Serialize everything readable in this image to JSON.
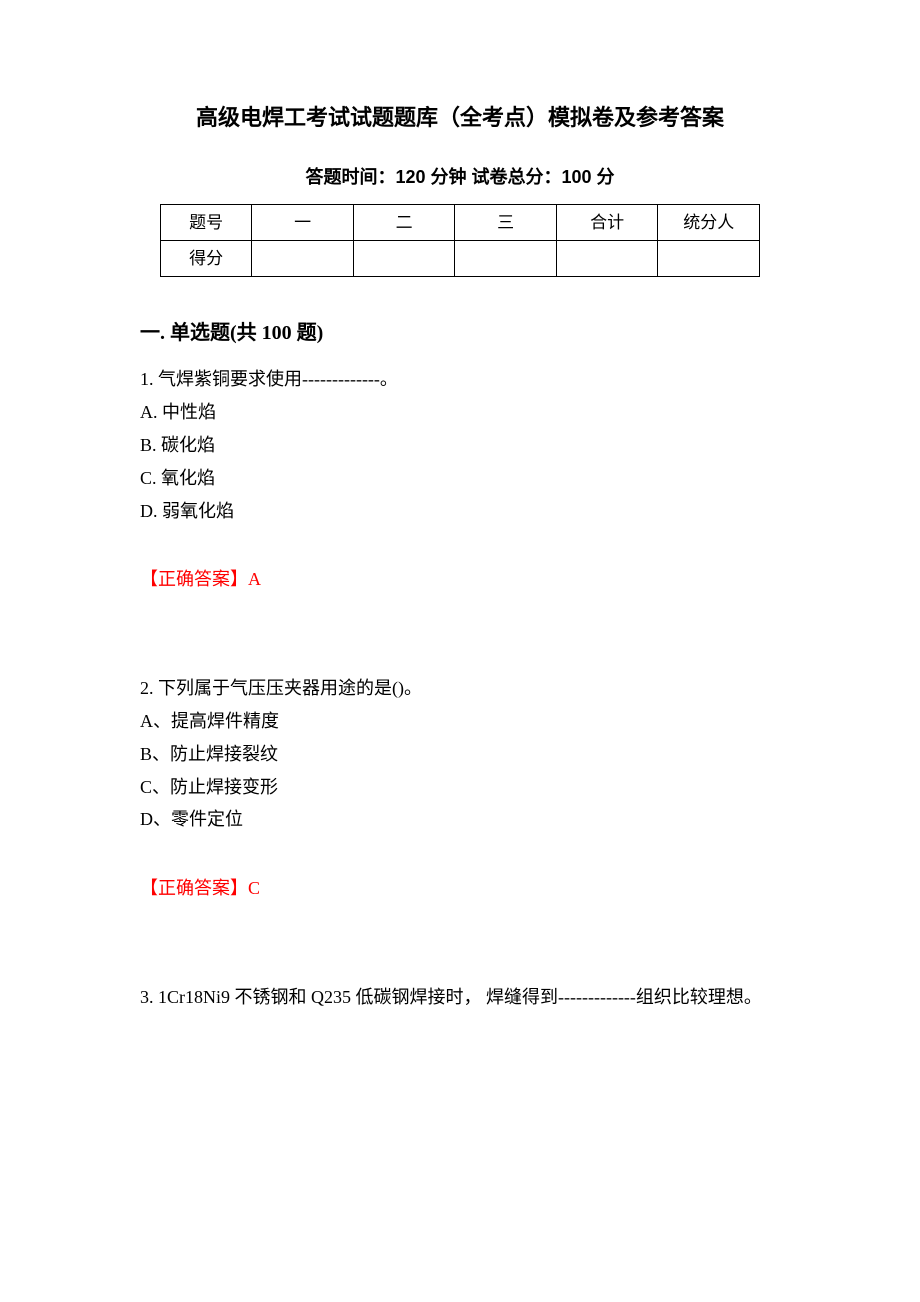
{
  "title": "高级电焊工考试试题题库（全考点）模拟卷及参考答案",
  "subtitle": "答题时间：120 分钟    试卷总分：100 分",
  "scoreTable": {
    "rowHeaders": [
      "题号",
      "得分"
    ],
    "columnLabels": [
      "一",
      "二",
      "三",
      "合计",
      "统分人"
    ]
  },
  "section": {
    "header": "一. 单选题(共 100 题)"
  },
  "questions": [
    {
      "stem": "1. 气焊紫铜要求使用-------------。",
      "options": [
        "A. 中性焰",
        "B. 碳化焰",
        "C. 氧化焰",
        "D. 弱氧化焰"
      ],
      "answerLabel": "【正确答案】A"
    },
    {
      "stem": "2. 下列属于气压压夹器用途的是()。",
      "options": [
        "A、提高焊件精度",
        "B、防止焊接裂纹",
        "C、防止焊接变形",
        "D、零件定位"
      ],
      "answerLabel": "【正确答案】C"
    },
    {
      "stem": "3. 1Cr18Ni9 不锈钢和 Q235 低碳钢焊接时， 焊缝得到-------------组织比较理想。",
      "options": [],
      "answerLabel": ""
    }
  ],
  "colors": {
    "text": "#000000",
    "answer": "#ff0000",
    "background": "#ffffff",
    "tableBorder": "#000000"
  },
  "typography": {
    "bodyFont": "SimSun",
    "headingFont": "SimHei",
    "bodyFontSize": 18,
    "titleFontSize": 22,
    "sectionFontSize": 20
  }
}
